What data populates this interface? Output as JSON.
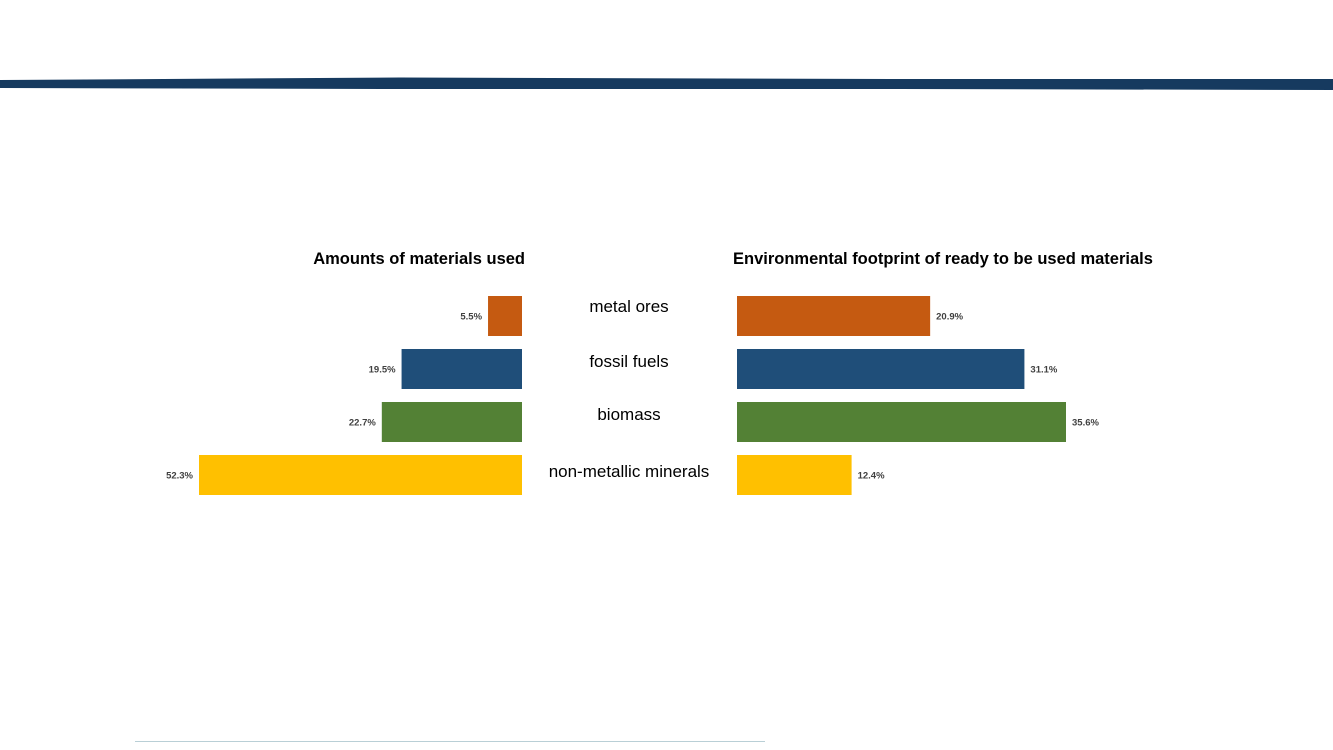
{
  "chart_data": [
    {
      "type": "bar",
      "orientation": "horizontal",
      "direction": "right-to-left",
      "title": "Amounts of materials used",
      "categories": [
        "metal ores",
        "fossil fuels",
        "biomass",
        "non-metallic minerals"
      ],
      "values": [
        5.5,
        19.5,
        22.7,
        52.3
      ],
      "data_labels": [
        "5.5%",
        "19.5%",
        "22.7%",
        "52.3%"
      ],
      "colors": [
        "#c55a11",
        "#1f4e79",
        "#538135",
        "#ffc000"
      ],
      "xlim": [
        0,
        52.3
      ],
      "grid": false,
      "legend": "none"
    },
    {
      "type": "bar",
      "orientation": "horizontal",
      "direction": "left-to-right",
      "title": "Environmental footprint of ready to be used materials",
      "categories": [
        "metal ores",
        "fossil fuels",
        "biomass",
        "non-metallic minerals"
      ],
      "values": [
        20.9,
        31.1,
        35.6,
        12.4
      ],
      "data_labels": [
        "20.9%",
        "31.1%",
        "35.6%",
        "12.4%"
      ],
      "colors": [
        "#c55a11",
        "#1f4e79",
        "#538135",
        "#ffc000"
      ],
      "xlim": [
        0,
        35.6
      ],
      "grid": false,
      "legend": "none"
    }
  ],
  "theme": {
    "band_color": "#163a5f",
    "label_color": "#404040",
    "category_color": "#000000"
  }
}
